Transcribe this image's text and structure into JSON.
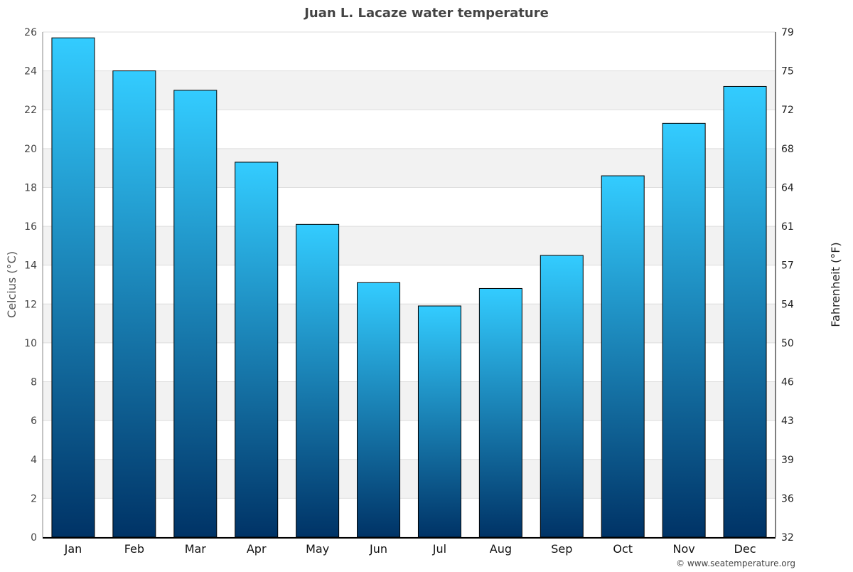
{
  "chart_data": {
    "type": "bar",
    "title": "Juan L. Lacaze water temperature",
    "ylabel": "Celcius (°C)",
    "y2label": "Fahrenheit (°F)",
    "categories": [
      "Jan",
      "Feb",
      "Mar",
      "Apr",
      "May",
      "Jun",
      "Jul",
      "Aug",
      "Sep",
      "Oct",
      "Nov",
      "Dec"
    ],
    "values": [
      25.7,
      24.0,
      23.0,
      19.3,
      16.1,
      13.1,
      11.9,
      12.8,
      14.5,
      18.6,
      21.3,
      23.2
    ],
    "ylim": [
      0,
      26
    ],
    "yticks": [
      0,
      2,
      4,
      6,
      8,
      10,
      12,
      14,
      16,
      18,
      20,
      22,
      24,
      26
    ],
    "y2ticks": [
      "32",
      "36",
      "39",
      "43",
      "46",
      "50",
      "54",
      "57",
      "61",
      "64",
      "68",
      "72",
      "75",
      "79"
    ],
    "grid": true,
    "colors": {
      "bar_top": "#33ccff",
      "bar_bottom": "#003366",
      "band": "#f2f2f2"
    },
    "credit": "© www.seatemperature.org"
  }
}
